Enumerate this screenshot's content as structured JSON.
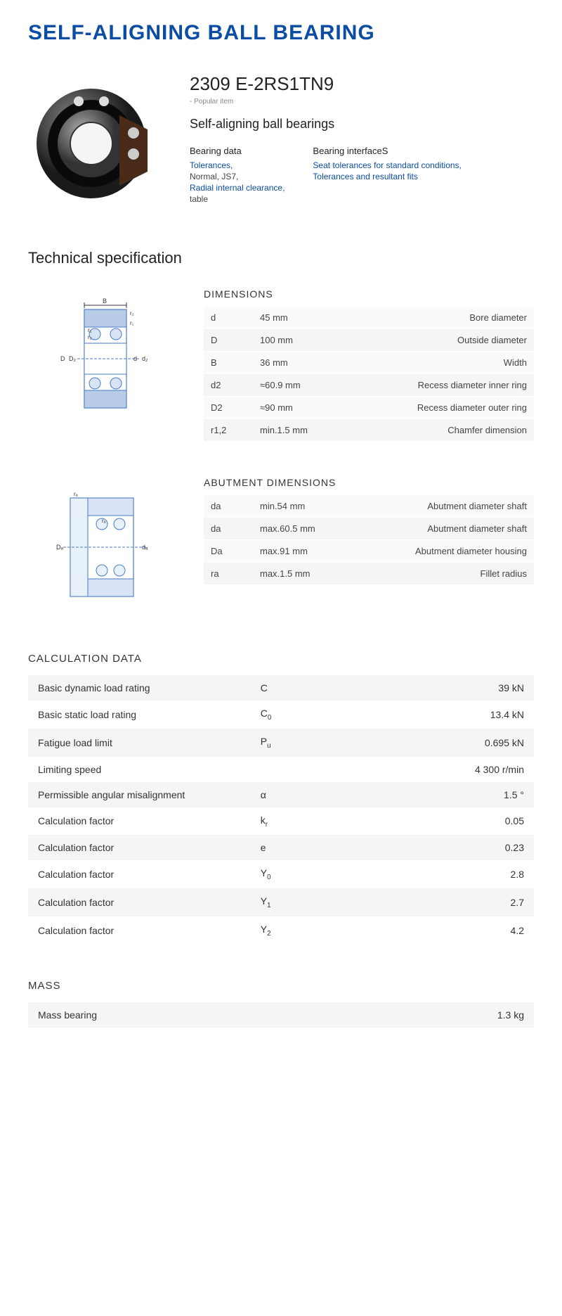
{
  "title": "SELF-ALIGNING BALL BEARING",
  "product": {
    "code": "2309 E-2RS1TN9",
    "popular": "- Popular item",
    "subtitle": "Self-aligning ball bearings"
  },
  "bearing_data": {
    "heading": "Bearing data",
    "tolerances": "Tolerances,",
    "normal": "Normal, JS7,",
    "clearance": "Radial internal clearance,",
    "table": "table"
  },
  "bearing_interface": {
    "heading": "Bearing interfaceS",
    "seat": "Seat tolerances for standard conditions,",
    "fits": "Tolerances and resultant fits"
  },
  "tech_heading": "Technical specification",
  "dimensions": {
    "title": "DIMENSIONS",
    "rows": [
      {
        "sym": "d",
        "val": "45  mm",
        "desc": "Bore diameter"
      },
      {
        "sym": "D",
        "val": "100  mm",
        "desc": "Outside diameter"
      },
      {
        "sym": "B",
        "val": "36  mm",
        "desc": "Width"
      },
      {
        "sym": "d2",
        "val": "≈60.9 mm",
        "desc": "Recess diameter inner ring"
      },
      {
        "sym": "D2",
        "val": "≈90 mm",
        "desc": "Recess diameter outer ring"
      },
      {
        "sym": "r1,2",
        "val": "min.1.5 mm",
        "desc": "Chamfer dimension"
      }
    ]
  },
  "abutment": {
    "title": "ABUTMENT DIMENSIONS",
    "rows": [
      {
        "sym": "da",
        "val": "min.54 mm",
        "desc": "Abutment diameter shaft"
      },
      {
        "sym": "da",
        "val": "max.60.5 mm",
        "desc": "Abutment diameter shaft"
      },
      {
        "sym": "Da",
        "val": "max.91 mm",
        "desc": "Abutment diameter housing"
      },
      {
        "sym": "ra",
        "val": "max.1.5 mm",
        "desc": "Fillet radius"
      }
    ]
  },
  "calculation": {
    "title": "CALCULATION DATA",
    "rows": [
      {
        "label": "Basic dynamic load rating",
        "sym": "C",
        "val": "39  kN"
      },
      {
        "label": "Basic static load rating",
        "sym": "C",
        "sub": "0",
        "val": "13.4  kN"
      },
      {
        "label": "Fatigue load limit",
        "sym": "P",
        "sub": "u",
        "val": "0.695  kN"
      },
      {
        "label": "Limiting speed",
        "sym": "",
        "val": "4 300  r/min"
      },
      {
        "label": "Permissible angular misalignment",
        "sym": "α",
        "val": "1.5  °"
      },
      {
        "label": "Calculation factor",
        "sym": "k",
        "sub": "r",
        "val": "0.05"
      },
      {
        "label": "Calculation factor",
        "sym": "e",
        "val": "0.23"
      },
      {
        "label": "Calculation factor",
        "sym": "Y",
        "sub": "0",
        "val": "2.8"
      },
      {
        "label": "Calculation factor",
        "sym": "Y",
        "sub": "1",
        "val": "2.7"
      },
      {
        "label": "Calculation factor",
        "sym": "Y",
        "sub": "2",
        "val": "4.2"
      }
    ]
  },
  "mass": {
    "title": "MASS",
    "label": "Mass bearing",
    "value": "1.3  kg"
  }
}
